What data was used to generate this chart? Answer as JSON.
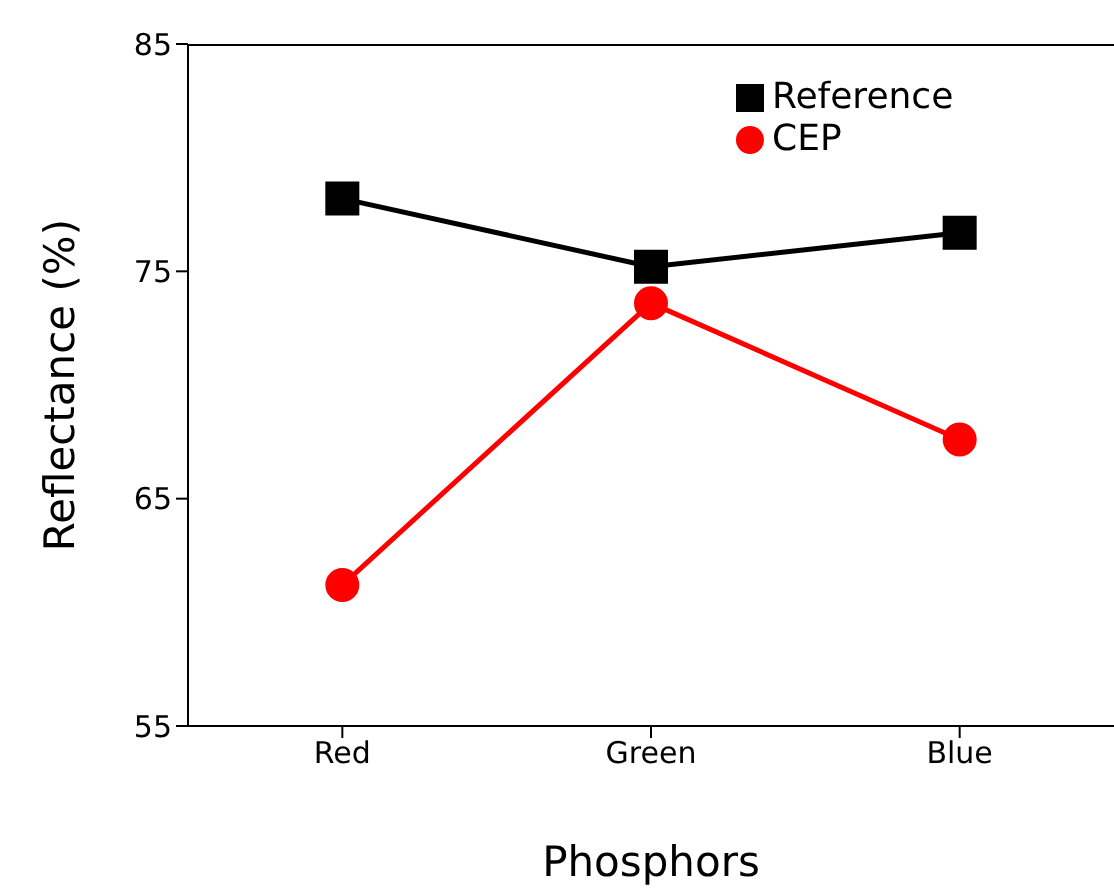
{
  "chart_data": {
    "type": "line",
    "xlabel": "Phosphors",
    "ylabel": "Reflectance (%)",
    "categories": [
      "Red",
      "Green",
      "Blue"
    ],
    "series": [
      {
        "name": "Reference",
        "color": "#000000",
        "marker": "square",
        "values": [
          78.2,
          75.2,
          76.7
        ]
      },
      {
        "name": "CEP",
        "color": "#ff0000",
        "marker": "circle",
        "values": [
          61.2,
          73.6,
          67.6
        ]
      }
    ],
    "ylim": [
      55,
      85
    ],
    "yticks": [
      55,
      65,
      75,
      85
    ],
    "grid": false,
    "legend": "top right"
  }
}
